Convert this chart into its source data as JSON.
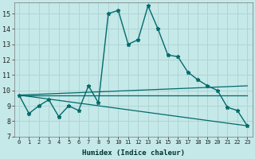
{
  "xlabel": "Humidex (Indice chaleur)",
  "bg_color": "#c5e8e8",
  "grid_color": "#b0d4d4",
  "line_color": "#006b6b",
  "xlim": [
    -0.5,
    23.5
  ],
  "ylim": [
    7,
    15.7
  ],
  "yticks": [
    7,
    8,
    9,
    10,
    11,
    12,
    13,
    14,
    15
  ],
  "xticks": [
    0,
    1,
    2,
    3,
    4,
    5,
    6,
    7,
    8,
    9,
    10,
    11,
    12,
    13,
    14,
    15,
    16,
    17,
    18,
    19,
    20,
    21,
    22,
    23
  ],
  "series1_x": [
    0,
    1,
    2,
    3,
    4,
    5,
    6,
    7,
    8,
    9,
    10,
    11,
    12,
    13,
    14,
    15,
    16,
    17,
    18,
    19,
    20,
    21,
    22,
    23
  ],
  "series1_y": [
    9.7,
    8.5,
    9.0,
    9.4,
    8.3,
    9.0,
    8.7,
    10.3,
    9.2,
    15.0,
    15.2,
    13.0,
    13.3,
    15.5,
    14.0,
    12.3,
    12.2,
    11.2,
    10.7,
    10.3,
    10.0,
    8.9,
    8.7,
    7.7
  ],
  "series2_x": [
    0,
    23
  ],
  "series2_y": [
    9.7,
    10.3
  ],
  "series3_x": [
    0,
    23
  ],
  "series3_y": [
    9.7,
    9.7
  ],
  "series4_x": [
    0,
    23
  ],
  "series4_y": [
    9.7,
    7.7
  ]
}
